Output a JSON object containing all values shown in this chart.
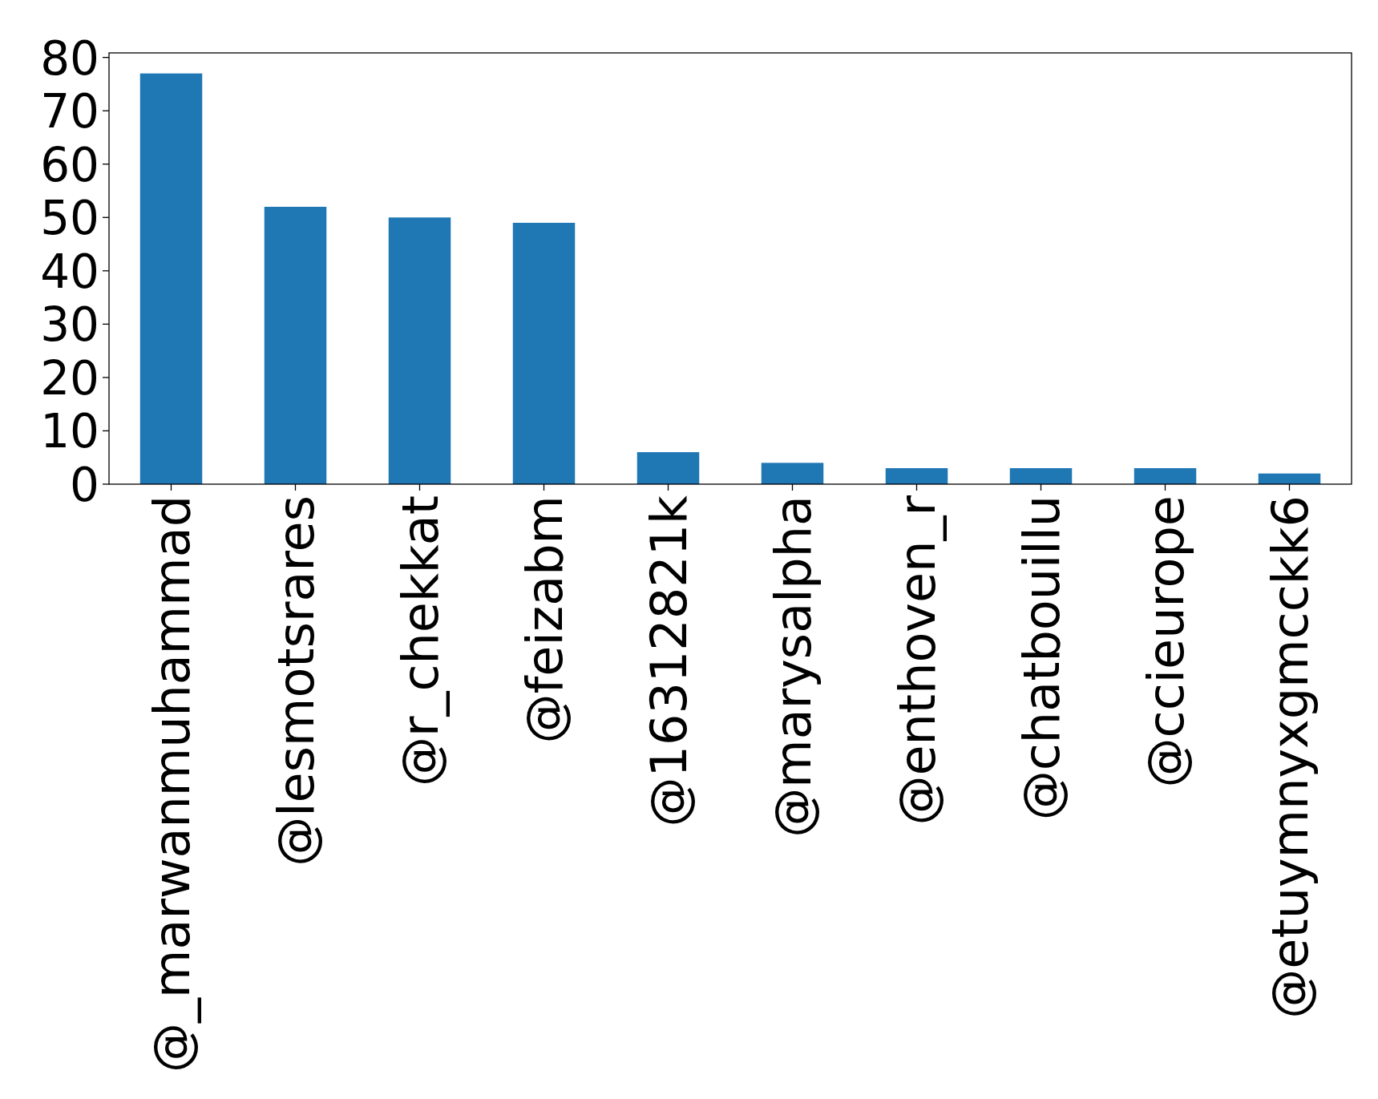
{
  "chart_data": {
    "type": "bar",
    "categories": [
      "@_marwanmuhammad",
      "@lesmotsrares",
      "@r_chekkat",
      "@feizabm",
      "@16312821k",
      "@marysalpha",
      "@enthoven_r",
      "@chatbouillu",
      "@ccieurope",
      "@etuymnyxgmcckk6"
    ],
    "values": [
      77,
      52,
      50,
      49,
      6,
      4,
      3,
      3,
      3,
      2
    ],
    "color": "#1f77b4",
    "ylim": [
      0,
      80.85
    ],
    "yticks": [
      0,
      10,
      20,
      30,
      40,
      50,
      60,
      70,
      80
    ],
    "grid": false
  }
}
